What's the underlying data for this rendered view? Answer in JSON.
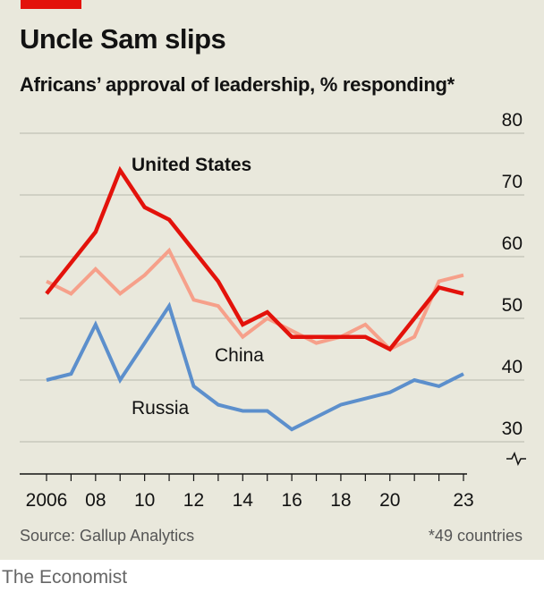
{
  "brand": "The Economist",
  "title": "Uncle Sam slips",
  "subtitle": "Africans’ approval of leadership, % responding*",
  "source": "Source: Gallup Analytics",
  "footnote": "*49 countries",
  "chart_data": {
    "type": "line",
    "x": [
      2006,
      2007,
      2008,
      2009,
      2010,
      2011,
      2012,
      2013,
      2014,
      2015,
      2016,
      2017,
      2018,
      2019,
      2020,
      2021,
      2022,
      2023
    ],
    "x_tick_values": [
      2006,
      2008,
      2010,
      2012,
      2014,
      2016,
      2018,
      2020,
      2023
    ],
    "x_tick_labels": [
      "2006",
      "08",
      "10",
      "12",
      "14",
      "16",
      "18",
      "20",
      "23"
    ],
    "ylim": [
      30,
      80
    ],
    "y_ticks": [
      30,
      40,
      50,
      60,
      70,
      80
    ],
    "y_axis_side": "right",
    "y_axis_break": true,
    "grid": true,
    "series": [
      {
        "name": "United States",
        "color": "#e3120b",
        "values": [
          54,
          59,
          64,
          74,
          68,
          66,
          61,
          56,
          49,
          51,
          47,
          47,
          47,
          47,
          45,
          50,
          55,
          54
        ]
      },
      {
        "name": "China",
        "color": "#f6a08a",
        "values": [
          56,
          54,
          58,
          54,
          57,
          61,
          53,
          52,
          47,
          50,
          48,
          46,
          47,
          49,
          45,
          47,
          56,
          57
        ]
      },
      {
        "name": "Russia",
        "color": "#5c8fcc",
        "values": [
          40,
          41,
          49,
          40,
          46,
          52,
          39,
          36,
          35,
          35,
          32,
          34,
          36,
          37,
          38,
          40,
          39,
          41
        ]
      }
    ]
  }
}
